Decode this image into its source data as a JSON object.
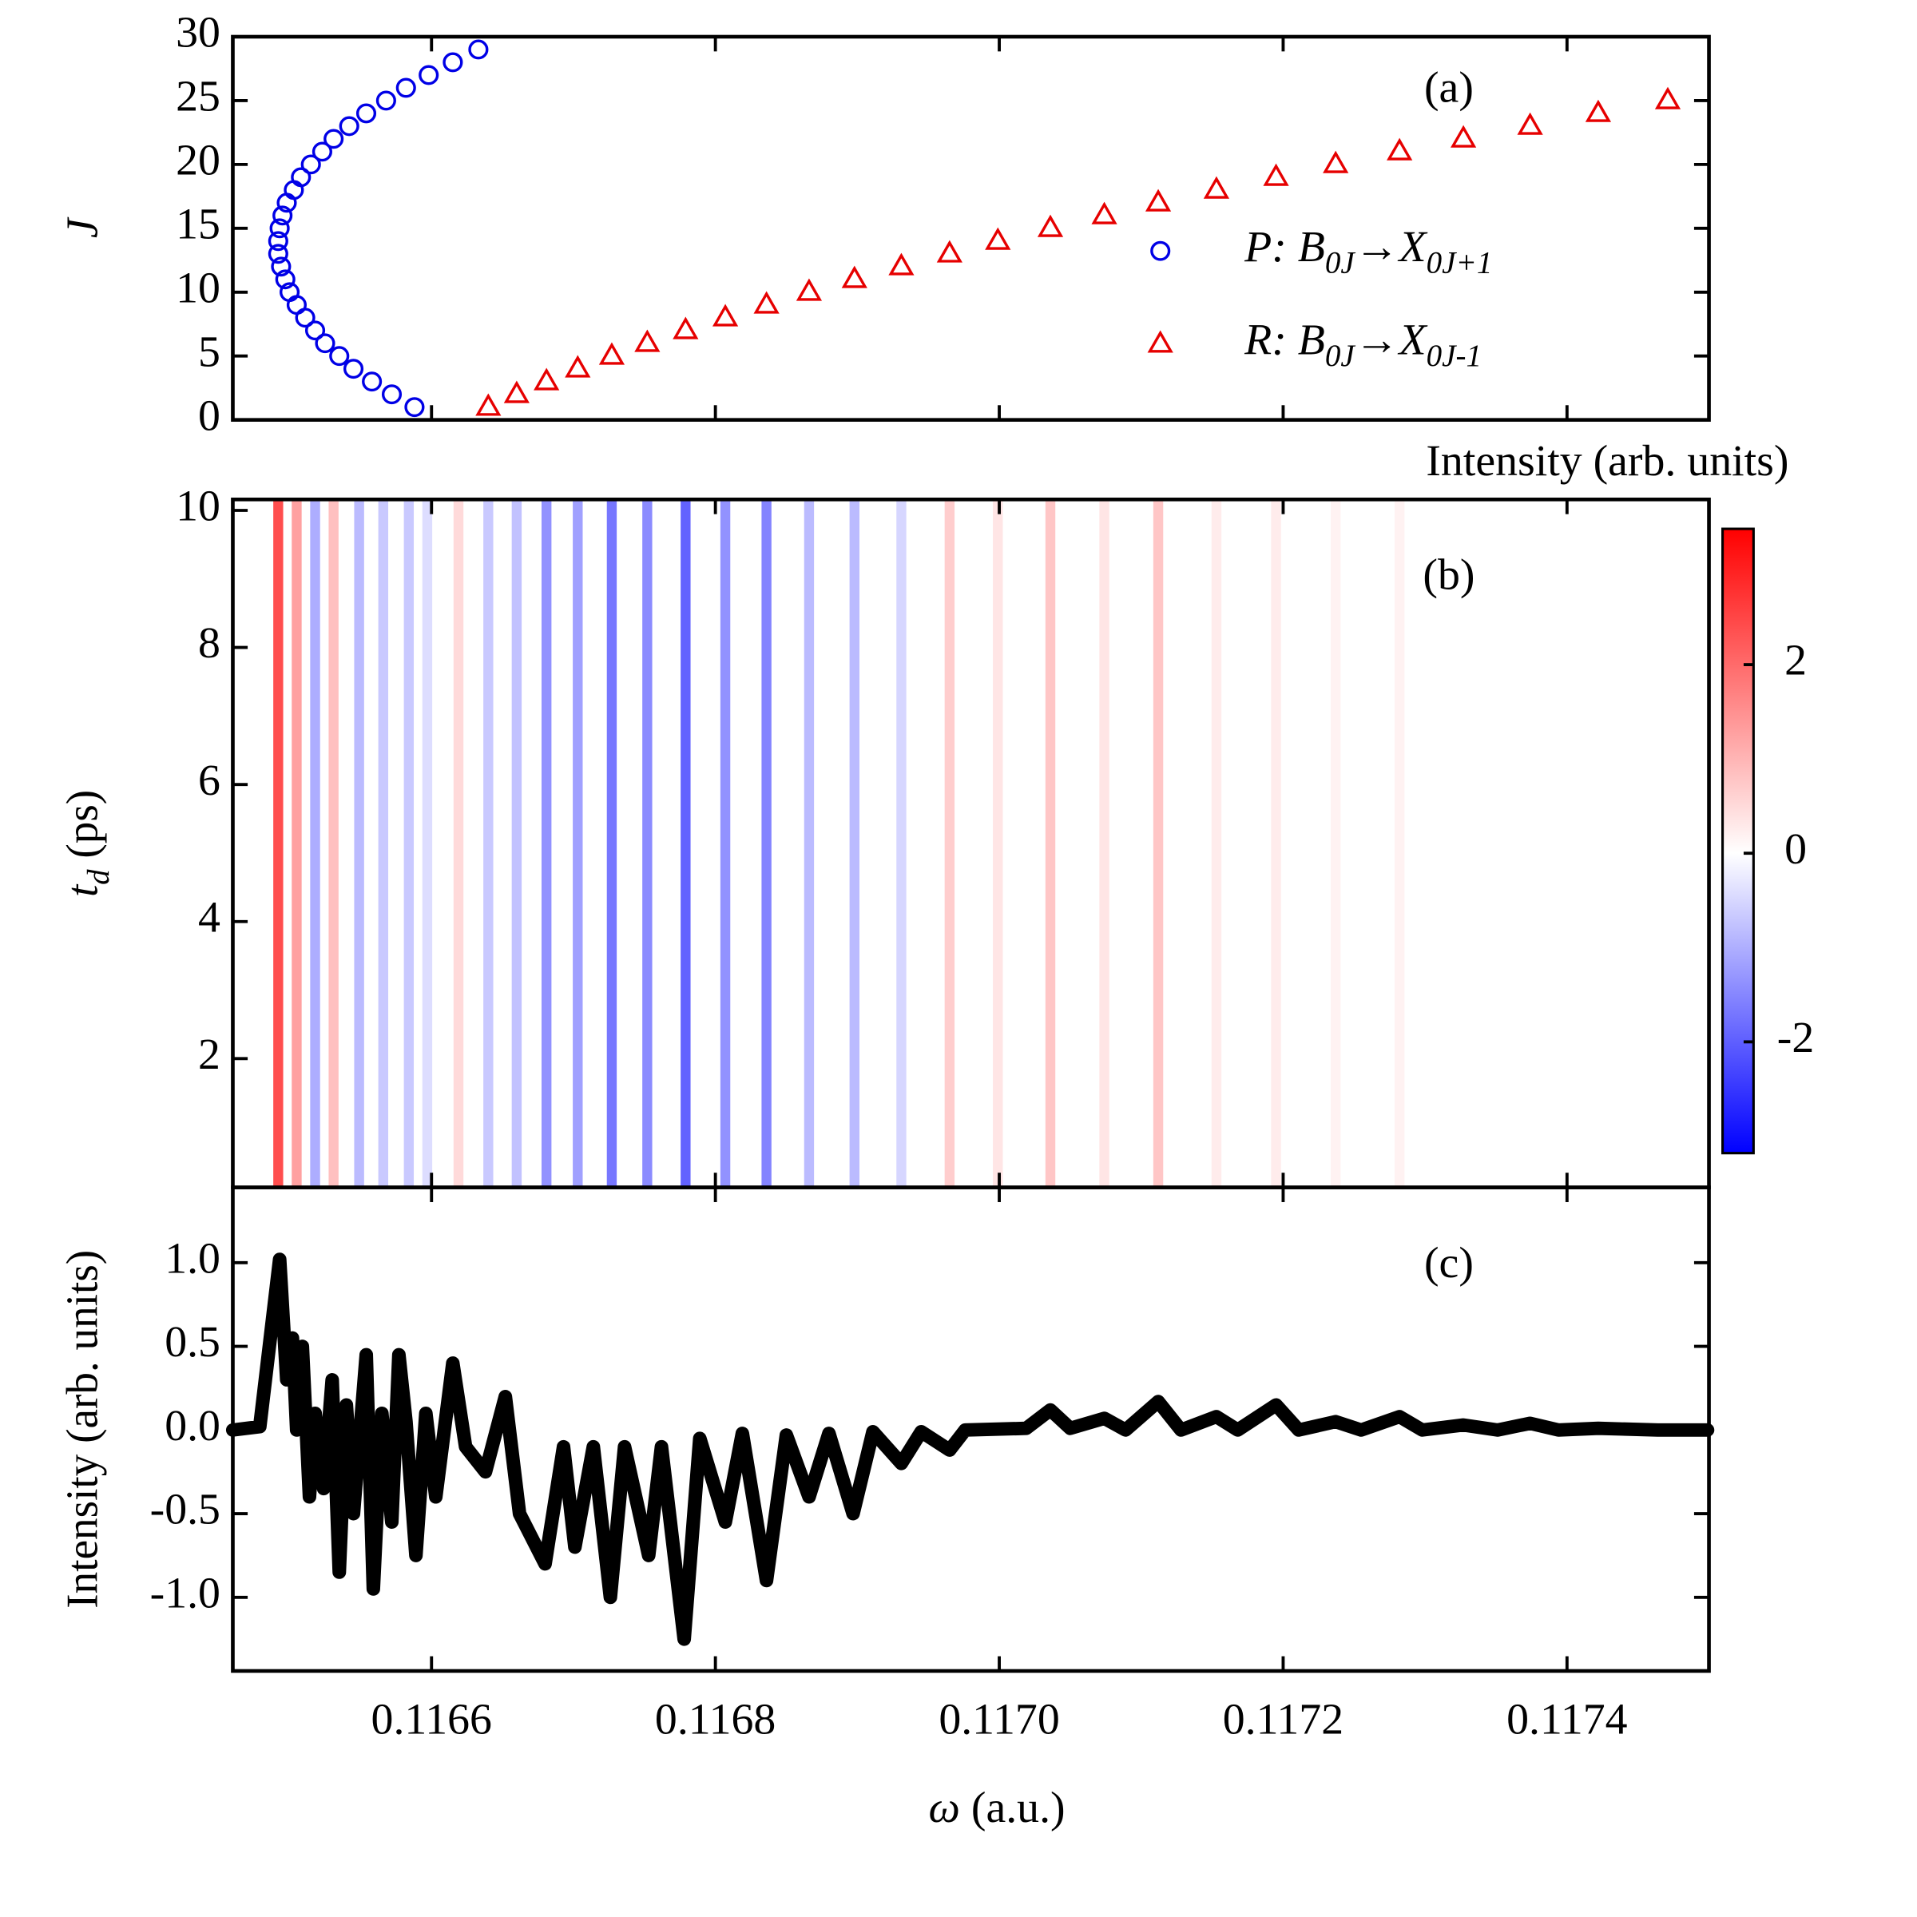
{
  "chart_data": [
    {
      "type": "scatter",
      "annotation": "(a)",
      "ylabel": "J",
      "xlim": [
        0.11646,
        0.1175
      ],
      "xticks": [
        0.1166,
        0.1168,
        0.117,
        0.1172,
        0.1174
      ],
      "ylim": [
        0,
        30
      ],
      "yticks": [
        0,
        5,
        10,
        15,
        20,
        25,
        30
      ],
      "series": [
        {
          "name": "P: B0J→X0J+1",
          "color": "#0000e6",
          "marker": "circle",
          "x": [
            0.116588,
            0.116572,
            0.116558,
            0.116545,
            0.116535,
            0.116525,
            0.116518,
            0.116511,
            0.116505,
            0.1165,
            0.116497,
            0.116494,
            0.116492,
            0.116492,
            0.116493,
            0.116495,
            0.116498,
            0.116503,
            0.116508,
            0.116515,
            0.116523,
            0.116531,
            0.116542,
            0.116554,
            0.116568,
            0.116582,
            0.116598,
            0.116615,
            0.116633
          ],
          "values": [
            1,
            2,
            3,
            4,
            5,
            6,
            7,
            8,
            9,
            10,
            11,
            12,
            13,
            14,
            15,
            16,
            17,
            18,
            19,
            20,
            21,
            22,
            23,
            24,
            25,
            26,
            27,
            28,
            29
          ]
        },
        {
          "name": "R: B0J→X0J-1",
          "color": "#e60000",
          "marker": "triangle",
          "x": [
            0.11664,
            0.11666,
            0.116681,
            0.116703,
            0.116727,
            0.116752,
            0.116779,
            0.116807,
            0.116836,
            0.116866,
            0.116898,
            0.116931,
            0.116965,
            0.116999,
            0.117036,
            0.117074,
            0.117112,
            0.117153,
            0.117195,
            0.117237,
            0.117282,
            0.117327,
            0.117374,
            0.117422,
            0.117471
          ],
          "values": [
            1,
            2,
            3,
            4,
            5,
            6,
            7,
            8,
            9,
            10,
            11,
            12,
            13,
            14,
            15,
            16,
            17,
            18,
            19,
            20,
            21,
            22,
            23,
            24,
            25
          ]
        }
      ]
    },
    {
      "type": "heatmap",
      "annotation": "(b)",
      "ylabel": "td (ps)",
      "xlim": [
        0.11646,
        0.1175
      ],
      "xticks": [
        0.1166,
        0.1168,
        0.117,
        0.1172,
        0.1174
      ],
      "ylim": [
        0.12,
        10.16
      ],
      "yticks": [
        2,
        4,
        6,
        8,
        10
      ],
      "x": [
        0.116492,
        0.116505,
        0.116518,
        0.116531,
        0.116549,
        0.116566,
        0.116584,
        0.116597,
        0.116619,
        0.11664,
        0.11666,
        0.116681,
        0.116703,
        0.116727,
        0.116752,
        0.116779,
        0.116807,
        0.116836,
        0.116866,
        0.116898,
        0.116931,
        0.116965,
        0.116999,
        0.117036,
        0.117074,
        0.117112,
        0.117153,
        0.117195,
        0.117237,
        0.117282
      ],
      "values": [
        2.8,
        1.5,
        -1.2,
        1.0,
        -1.0,
        -0.8,
        -0.8,
        -0.5,
        0.6,
        -0.8,
        -0.9,
        -1.6,
        -1.4,
        -2.0,
        -1.7,
        -2.3,
        -1.6,
        -1.8,
        -1.0,
        -1.0,
        -0.6,
        0.8,
        0.4,
        0.9,
        0.4,
        0.9,
        0.3,
        0.3,
        0.2,
        0.2
      ],
      "colorbar": {
        "title": "Intensity (arb. units)",
        "lim": [
          -3.18,
          3.44
        ],
        "ticks": [
          -2,
          0,
          2
        ]
      }
    },
    {
      "type": "line",
      "annotation": "(c)",
      "xlabel": "ω (a.u.)",
      "ylabel": "Intensity (arb. units)",
      "xlim": [
        0.11646,
        0.1175
      ],
      "xticks": [
        0.1166,
        0.1168,
        {
          "value": 0.117,
          "label": "0.1170"
        },
        0.1172,
        0.1174
      ],
      "ylim": [
        -1.44,
        1.45
      ],
      "yticks": [
        {
          "value": 1.0,
          "label": "1.0"
        },
        0.5,
        {
          "value": 0.0,
          "label": "0.0"
        },
        -0.5,
        {
          "value": -1.0,
          "label": "-1.0"
        }
      ],
      "series": [
        {
          "color": "#000000",
          "x": [
            0.11646,
            0.116479,
            0.116493,
            0.116498,
            0.116502,
            0.116505,
            0.116509,
            0.116514,
            0.116518,
            0.116524,
            0.11653,
            0.116535,
            0.11654,
            0.116545,
            0.116554,
            0.116559,
            0.116565,
            0.116572,
            0.116577,
            0.116582,
            0.116589,
            0.116596,
            0.116603,
            0.116615,
            0.116624,
            0.116638,
            0.116652,
            0.116662,
            0.11668,
            0.116693,
            0.116701,
            0.116714,
            0.116726,
            0.116736,
            0.116753,
            0.116762,
            0.116778,
            0.116789,
            0.116807,
            0.116819,
            0.116836,
            0.11685,
            0.116866,
            0.11688,
            0.116897,
            0.116911,
            0.116931,
            0.116945,
            0.116965,
            0.116976,
            0.117019,
            0.117036,
            0.11705,
            0.117074,
            0.117089,
            0.117112,
            0.117128,
            0.117153,
            0.117168,
            0.117195,
            0.117211,
            0.117237,
            0.117255,
            0.117282,
            0.117298,
            0.117327,
            0.117351,
            0.117374,
            0.117394,
            0.117422,
            0.117464,
            0.117499
          ],
          "values": [
            0,
            0.02,
            1.02,
            0.3,
            0.55,
            0.0,
            0.5,
            -0.4,
            0.1,
            -0.35,
            0.3,
            -0.85,
            0.15,
            -0.5,
            0.45,
            -0.95,
            0.1,
            -0.55,
            0.45,
            0.05,
            -0.75,
            0.1,
            -0.4,
            0.4,
            -0.1,
            -0.25,
            0.2,
            -0.5,
            -0.8,
            -0.1,
            -0.7,
            -0.1,
            -1.0,
            -0.1,
            -0.75,
            -0.1,
            -1.25,
            -0.05,
            -0.55,
            -0.02,
            -0.9,
            -0.03,
            -0.4,
            -0.02,
            -0.5,
            -0.01,
            -0.2,
            -0.01,
            -0.12,
            0,
            0.01,
            0.12,
            0.01,
            0.07,
            0,
            0.17,
            0,
            0.08,
            0,
            0.15,
            0,
            0.05,
            0,
            0.08,
            0,
            0.03,
            0,
            0.04,
            0,
            0.01,
            0,
            0
          ]
        }
      ]
    }
  ]
}
